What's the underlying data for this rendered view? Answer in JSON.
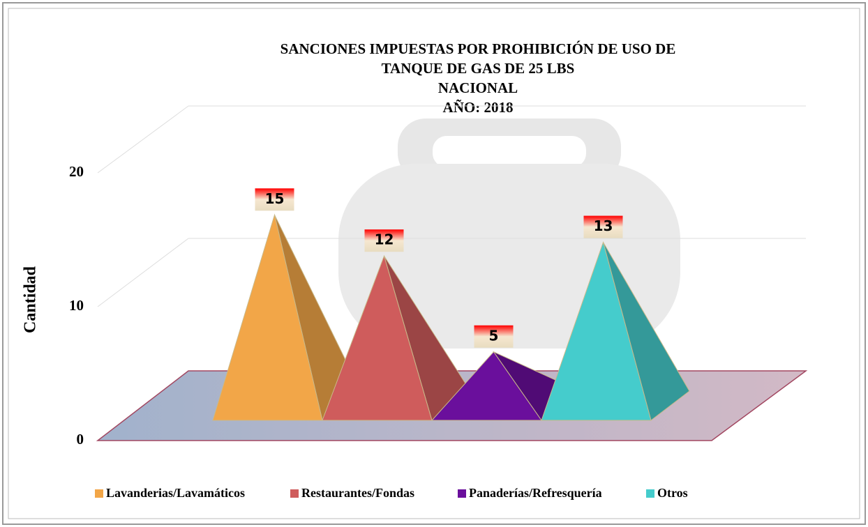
{
  "chart_data": {
    "type": "pyramid",
    "title": [
      "SANCIONES IMPUESTAS POR PROHIBICIÓN DE USO DE",
      "TANQUE DE GAS DE 25 LBS",
      "NACIONAL",
      "AÑO: 2018"
    ],
    "y_label": "Cantidad",
    "categories": [
      "Lavanderias/Lavamáticos",
      "Restaurantes/Fondas",
      "Panaderías/Refresquería",
      "Otros"
    ],
    "values": [
      15,
      12,
      5,
      13
    ],
    "colors": [
      "#f2a648",
      "#cf5c5c",
      "#6a0f9c",
      "#45cccc"
    ],
    "ylim": [
      0,
      20
    ],
    "yticks": [
      0,
      10,
      20
    ],
    "grid": true
  }
}
